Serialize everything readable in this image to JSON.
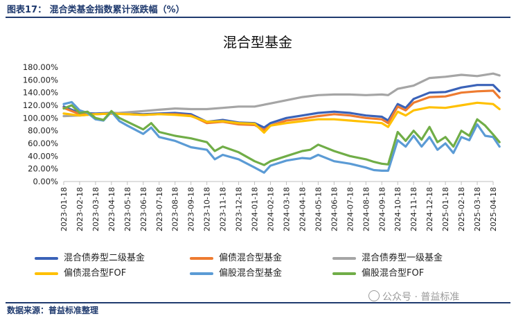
{
  "figure_title": "图表17：  混合类基金指数累计涨跌幅（%）",
  "source": "数据来源：普益标准整理",
  "watermark": "公众号 · 普益标准",
  "colors": {
    "s1": "#3a62b8",
    "s2": "#ee7b30",
    "s3": "#a5a5a5",
    "s4": "#ffc000",
    "s5": "#5b9bd5",
    "s6": "#70ad47"
  },
  "chart_data": {
    "type": "line",
    "title": "混合型基金",
    "xlabel": "",
    "ylabel": "",
    "ylim": [
      0,
      180
    ],
    "y_ticks": [
      "0.00%",
      "20.00%",
      "40.00%",
      "60.00%",
      "80.00%",
      "100.00%",
      "120.00%",
      "140.00%",
      "160.00%",
      "180.00%"
    ],
    "x_ticks": [
      "2023-01-18",
      "2023-02-18",
      "2023-03-18",
      "2023-04-18",
      "2023-05-18",
      "2023-06-18",
      "2023-07-18",
      "2023-08-18",
      "2023-09-18",
      "2023-10-18",
      "2023-11-18",
      "2023-12-18",
      "2024-01-18",
      "2024-02-18",
      "2024-03-18",
      "2024-04-18",
      "2024-05-18",
      "2024-06-18",
      "2024-07-18",
      "2024-08-18",
      "2024-09-18",
      "2024-10-18",
      "2024-11-18",
      "2024-12-18",
      "2025-01-18",
      "2025-02-18",
      "2025-03-18",
      "2025-04-18"
    ],
    "grid": false,
    "legend_position": "bottom",
    "series": [
      {
        "name": "混合债券型二级基金",
        "color": "#3a62b8",
        "x": [
          0,
          1,
          2,
          3,
          4,
          5,
          6,
          7,
          8,
          9,
          10,
          11,
          12,
          12.6,
          13,
          14,
          15,
          16,
          17,
          18,
          19,
          20,
          20.4,
          21,
          21.5,
          22,
          23,
          24,
          25,
          26,
          27,
          27.4
        ],
        "values": [
          118,
          108,
          107,
          108,
          107,
          106,
          107,
          108,
          106,
          94,
          97,
          93,
          92,
          85,
          92,
          100,
          104,
          108,
          110,
          108,
          104,
          102,
          96,
          122,
          116,
          130,
          140,
          141,
          148,
          152,
          152,
          142
        ]
      },
      {
        "name": "偏债混合型基金",
        "color": "#ee7b30",
        "x": [
          0,
          1,
          2,
          3,
          4,
          5,
          6,
          7,
          8,
          9,
          10,
          11,
          12,
          12.6,
          13,
          14,
          15,
          16,
          17,
          18,
          19,
          20,
          20.4,
          21,
          21.5,
          22,
          23,
          24,
          25,
          26,
          27,
          27.4
        ],
        "values": [
          116,
          106,
          106,
          107,
          106,
          105,
          106,
          106,
          104,
          92,
          94,
          90,
          89,
          81,
          88,
          96,
          99,
          103,
          106,
          104,
          100,
          98,
          92,
          118,
          112,
          124,
          133,
          134,
          140,
          142,
          143,
          132
        ]
      },
      {
        "name": "混合债券型一级基金",
        "color": "#a5a5a5",
        "x": [
          0,
          1,
          2,
          3,
          4,
          5,
          6,
          7,
          8,
          9,
          10,
          11,
          12,
          13,
          14,
          15,
          16,
          17,
          18,
          19,
          20,
          20.4,
          21,
          22,
          23,
          24,
          25,
          26,
          27,
          27.4
        ],
        "values": [
          103,
          104,
          106,
          107,
          109,
          111,
          113,
          115,
          114,
          114,
          116,
          118,
          118,
          123,
          128,
          133,
          136,
          137,
          137,
          136,
          137,
          136,
          146,
          151,
          163,
          165,
          168,
          166,
          170,
          167
        ]
      },
      {
        "name": "偏债混合型FOF",
        "color": "#ffc000",
        "x": [
          0,
          1,
          2,
          3,
          4,
          5,
          6,
          7,
          8,
          9,
          10,
          11,
          12,
          12.6,
          13,
          14,
          15,
          16,
          17,
          18,
          19,
          20,
          20.4,
          21,
          21.5,
          22,
          23,
          24,
          25,
          26,
          27,
          27.4
        ],
        "values": [
          107,
          104,
          106,
          107,
          106,
          105,
          106,
          105,
          103,
          94,
          95,
          92,
          91,
          77,
          88,
          92,
          95,
          98,
          98,
          96,
          94,
          92,
          86,
          110,
          104,
          112,
          117,
          116,
          120,
          124,
          122,
          114
        ]
      },
      {
        "name": "偏股混合型基金",
        "color": "#5b9bd5",
        "x": [
          0,
          0.5,
          1,
          1.5,
          2,
          2.5,
          3,
          3.5,
          4,
          5,
          5.5,
          6,
          7,
          8,
          9,
          9.5,
          10,
          11,
          12,
          12.6,
          13,
          14,
          15,
          15.5,
          16,
          17,
          18,
          19,
          19.5,
          20,
          20.4,
          21,
          21.5,
          22,
          22.5,
          23,
          23.5,
          24,
          24.5,
          25,
          25.5,
          26,
          26.5,
          27,
          27.4
        ],
        "values": [
          122,
          125,
          112,
          108,
          98,
          96,
          110,
          95,
          88,
          75,
          85,
          70,
          64,
          54,
          50,
          35,
          42,
          35,
          22,
          14,
          25,
          33,
          37,
          36,
          42,
          32,
          28,
          22,
          18,
          17,
          17,
          65,
          55,
          72,
          55,
          70,
          50,
          60,
          45,
          70,
          65,
          90,
          72,
          70,
          55
        ]
      },
      {
        "name": "偏股混合型FOF",
        "color": "#70ad47",
        "x": [
          0,
          0.5,
          1,
          1.5,
          2,
          2.5,
          3,
          3.5,
          4,
          5,
          5.5,
          6,
          7,
          8,
          9,
          9.5,
          10,
          11,
          12,
          12.6,
          13,
          14,
          15,
          15.5,
          16,
          17,
          18,
          19,
          19.5,
          20,
          20.4,
          21,
          21.5,
          22,
          22.5,
          23,
          23.5,
          24,
          24.5,
          25,
          25.5,
          26,
          26.5,
          27,
          27.4
        ],
        "values": [
          115,
          120,
          108,
          110,
          100,
          97,
          111,
          100,
          94,
          82,
          92,
          78,
          72,
          68,
          62,
          48,
          55,
          46,
          32,
          26,
          32,
          40,
          48,
          50,
          58,
          48,
          40,
          35,
          31,
          28,
          27,
          78,
          64,
          80,
          66,
          86,
          62,
          70,
          55,
          80,
          72,
          98,
          88,
          74,
          62
        ]
      }
    ]
  }
}
